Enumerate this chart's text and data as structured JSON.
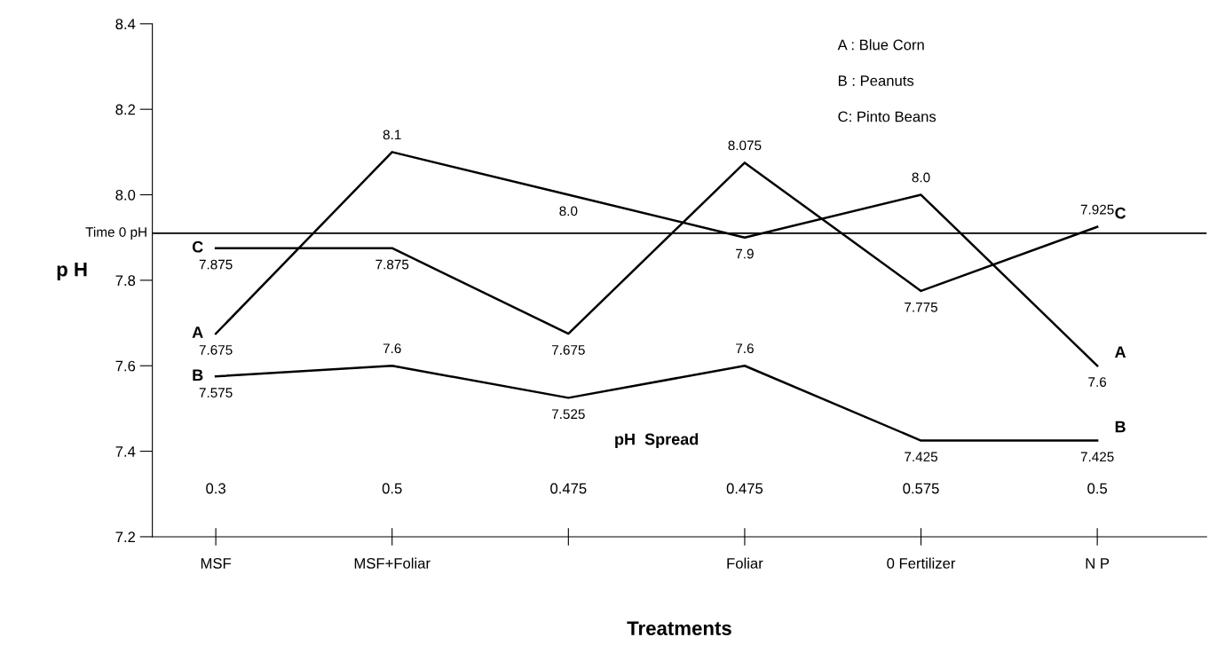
{
  "chart_data": {
    "type": "line",
    "xlabel": "Treatments",
    "ylabel": "p H",
    "categories": [
      "MSF",
      "MSF+Foliar",
      null,
      "Foliar",
      "0 Fertilizer",
      "N P"
    ],
    "series": [
      {
        "name": "A",
        "color": "#000000",
        "values": [
          7.675,
          8.1,
          8.0,
          7.9,
          8.0,
          7.6
        ],
        "value_labels": [
          "7.675",
          "8.1",
          "8.0",
          "7.9",
          "8.0",
          "7.6"
        ]
      },
      {
        "name": "B",
        "color": "#000000",
        "values": [
          7.575,
          7.6,
          7.525,
          7.6,
          7.425,
          7.425
        ]
      },
      {
        "name": "C",
        "color": "#000000",
        "values": [
          7.875,
          7.875,
          7.675,
          8.075,
          7.775,
          7.925
        ]
      }
    ],
    "ylim": [
      7.2,
      8.4
    ],
    "yticks": [
      7.2,
      7.4,
      7.6,
      7.8,
      {
        "value": 8.0,
        "label": "8.0"
      },
      8.2,
      8.4
    ],
    "ref_lines": [
      {
        "axis": "y",
        "value": 7.91,
        "label": "Time 0 pH",
        "color": "#000000"
      }
    ],
    "data_labels": true,
    "grid": false,
    "legend": false,
    "marker": "none",
    "line_style": "solid",
    "annotations": [
      "A : Blue Corn",
      "B : Peanuts",
      "C: Pinto Beans",
      "pH  Spread",
      "0.3",
      "0.5",
      "0.475",
      "0.475",
      "0.575",
      "0.5"
    ]
  }
}
